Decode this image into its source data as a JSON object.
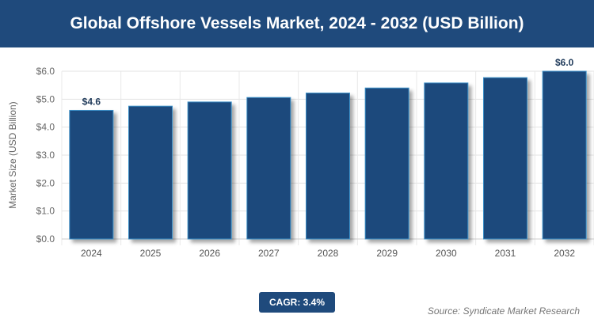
{
  "header": {
    "title": "Global Offshore Vessels Market, 2024 - 2032 (USD Billion)"
  },
  "chart_data": {
    "type": "bar",
    "title": "Global Offshore Vessels Market, 2024 - 2032 (USD Billion)",
    "categories": [
      "2024",
      "2025",
      "2026",
      "2027",
      "2028",
      "2029",
      "2030",
      "2031",
      "2032"
    ],
    "values": [
      4.6,
      4.75,
      4.9,
      5.06,
      5.22,
      5.4,
      5.58,
      5.77,
      6.0
    ],
    "data_labels": {
      "0": "$4.6",
      "8": "$6.0"
    },
    "xlabel": "",
    "ylabel": "Market Size (USD Billion)",
    "ylim": [
      0,
      6
    ],
    "yticks": [
      "$0.0",
      "$1.0",
      "$2.0",
      "$3.0",
      "$4.0",
      "$5.0",
      "$6.0"
    ],
    "grid": true,
    "bar_color": "#1f4a7c"
  },
  "footer": {
    "cagr": "CAGR: 3.4%",
    "source": "Source: Syndicate Market Research"
  }
}
